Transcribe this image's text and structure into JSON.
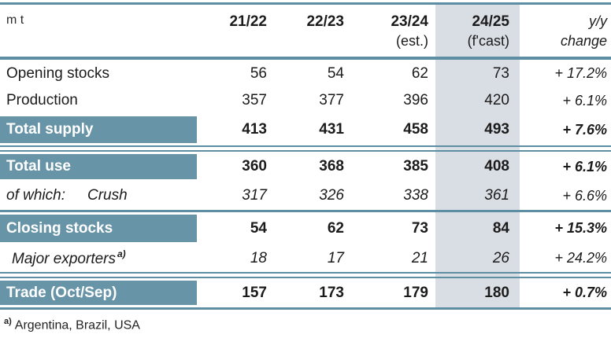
{
  "table": {
    "unit_label": "m t",
    "header": {
      "columns": [
        {
          "year": "21/22",
          "sub": ""
        },
        {
          "year": "22/23",
          "sub": ""
        },
        {
          "year": "23/24",
          "sub": "(est.)"
        },
        {
          "year": "24/25",
          "sub": "(f'cast)"
        },
        {
          "year": "y/y",
          "sub": "change"
        }
      ]
    },
    "rows": [
      {
        "label": "Opening stocks",
        "values": [
          "56",
          "54",
          "62",
          "73"
        ],
        "yoy": "+ 17.2%"
      },
      {
        "label": "Production",
        "values": [
          "357",
          "377",
          "396",
          "420"
        ],
        "yoy": "+ 6.1%"
      },
      {
        "label": "Total supply",
        "values": [
          "413",
          "431",
          "458",
          "493"
        ],
        "yoy": "+ 7.6%"
      },
      {
        "label": "Total use",
        "values": [
          "360",
          "368",
          "385",
          "408"
        ],
        "yoy": "+ 6.1%"
      },
      {
        "label_prefix": "of which:",
        "label": "Crush",
        "values": [
          "317",
          "326",
          "338",
          "361"
        ],
        "yoy": "+ 6.6%"
      },
      {
        "label": "Closing stocks",
        "values": [
          "54",
          "62",
          "73",
          "84"
        ],
        "yoy": "+ 15.3%"
      },
      {
        "label": "Major exporters",
        "label_sup": "a)",
        "values": [
          "18",
          "17",
          "21",
          "26"
        ],
        "yoy": "+ 24.2%"
      },
      {
        "label": "Trade (Oct/Sep)",
        "values": [
          "157",
          "173",
          "179",
          "180"
        ],
        "yoy": "+ 0.7%"
      }
    ],
    "footnote": {
      "marker": "a)",
      "text": "Argentina, Brazil, USA"
    }
  },
  "colors": {
    "band": "#6894A8",
    "line": "#5E8EA4",
    "highlight_column": "#D9DDE4",
    "text": "#1B1B1B"
  },
  "chart_data": {
    "type": "table",
    "unit": "m t",
    "columns": [
      "21/22",
      "22/23",
      "23/24 (est.)",
      "24/25 (f'cast)",
      "y/y change"
    ],
    "rows": [
      {
        "label": "Opening stocks",
        "values": [
          56,
          54,
          62,
          73
        ],
        "yoy_change_pct": 17.2
      },
      {
        "label": "Production",
        "values": [
          357,
          377,
          396,
          420
        ],
        "yoy_change_pct": 6.1
      },
      {
        "label": "Total supply",
        "values": [
          413,
          431,
          458,
          493
        ],
        "yoy_change_pct": 7.6
      },
      {
        "label": "Total use",
        "values": [
          360,
          368,
          385,
          408
        ],
        "yoy_change_pct": 6.1
      },
      {
        "label": "of which: Crush",
        "values": [
          317,
          326,
          338,
          361
        ],
        "yoy_change_pct": 6.6
      },
      {
        "label": "Closing stocks",
        "values": [
          54,
          62,
          73,
          84
        ],
        "yoy_change_pct": 15.3
      },
      {
        "label": "Major exporters a)",
        "values": [
          18,
          17,
          21,
          26
        ],
        "yoy_change_pct": 24.2
      },
      {
        "label": "Trade (Oct/Sep)",
        "values": [
          157,
          173,
          179,
          180
        ],
        "yoy_change_pct": 0.7
      }
    ],
    "highlighted_column": "24/25 (f'cast)",
    "footnote": "a) Argentina, Brazil, USA"
  }
}
